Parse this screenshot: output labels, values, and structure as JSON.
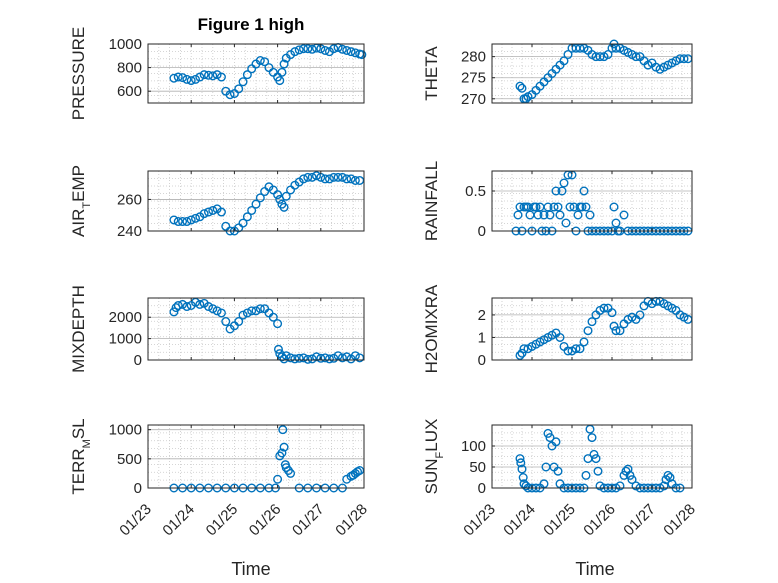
{
  "figure": {
    "title": "Figure 1 high",
    "xlabel": "Time"
  },
  "colors": {
    "marker": "#0072bd",
    "axis": "#262626",
    "grid": "#c8c8c8",
    "background": "#ffffff"
  },
  "chart_data": [
    {
      "id": "pressure",
      "type": "scatter",
      "ylabel": "PRESSURE",
      "title": "Figure 1 high",
      "ylim": [
        500,
        1000
      ],
      "yticks": [
        600,
        800,
        1000
      ],
      "xlim": [
        0,
        5
      ],
      "xticks": [
        "01/23",
        "01/24",
        "01/25",
        "01/26",
        "01/27",
        "01/28"
      ],
      "grid": true,
      "x": [
        0.6,
        0.7,
        0.8,
        0.9,
        1.0,
        1.1,
        1.2,
        1.3,
        1.4,
        1.5,
        1.6,
        1.7,
        1.8,
        1.9,
        2.0,
        2.1,
        2.2,
        2.3,
        2.4,
        2.5,
        2.6,
        2.7,
        2.8,
        2.9,
        3.0,
        3.05,
        3.1,
        3.15,
        3.2,
        3.3,
        3.4,
        3.5,
        3.6,
        3.7,
        3.8,
        3.9,
        4.0,
        4.1,
        4.2,
        4.3,
        4.4,
        4.5,
        4.6,
        4.7,
        4.8,
        4.9,
        4.95
      ],
      "y": [
        710,
        720,
        715,
        700,
        690,
        700,
        720,
        740,
        735,
        730,
        740,
        720,
        600,
        570,
        580,
        620,
        680,
        740,
        790,
        830,
        860,
        850,
        800,
        760,
        720,
        690,
        760,
        830,
        880,
        910,
        935,
        950,
        960,
        960,
        955,
        965,
        960,
        945,
        935,
        960,
        970,
        955,
        945,
        935,
        925,
        915,
        910
      ]
    },
    {
      "id": "theta",
      "type": "scatter",
      "ylabel": "THETA",
      "ylim": [
        269,
        283
      ],
      "yticks": [
        270,
        275,
        280
      ],
      "xlim": [
        0,
        5
      ],
      "xticks": [
        "01/23",
        "01/24",
        "01/25",
        "01/26",
        "01/27",
        "01/28"
      ],
      "grid": true,
      "x": [
        0.7,
        0.75,
        0.8,
        0.85,
        0.9,
        1.0,
        1.1,
        1.2,
        1.3,
        1.4,
        1.5,
        1.6,
        1.7,
        1.8,
        1.9,
        2.0,
        2.1,
        2.2,
        2.3,
        2.4,
        2.5,
        2.6,
        2.7,
        2.8,
        2.9,
        3.0,
        3.05,
        3.1,
        3.2,
        3.3,
        3.4,
        3.5,
        3.6,
        3.7,
        3.8,
        3.9,
        4.0,
        4.1,
        4.2,
        4.3,
        4.4,
        4.5,
        4.6,
        4.7,
        4.8,
        4.9
      ],
      "y": [
        273,
        272.5,
        270,
        270,
        270.5,
        271,
        272,
        273,
        274,
        275,
        276,
        277,
        278,
        279,
        280.5,
        282,
        282,
        282,
        282,
        281.5,
        280.5,
        280,
        280,
        280,
        280.5,
        282,
        283,
        282,
        282,
        281.5,
        281,
        280.5,
        280,
        280,
        279,
        278,
        278.5,
        277.5,
        277,
        277.5,
        278,
        278.5,
        279,
        279.5,
        279.5,
        279.5
      ]
    },
    {
      "id": "air_temp",
      "type": "scatter",
      "ylabel": "AIR",
      "ylabel_sub": "T",
      "ylabel_tail": "EMP",
      "ylim": [
        240,
        278
      ],
      "yticks": [
        240,
        260
      ],
      "xlim": [
        0,
        5
      ],
      "xticks": [
        "01/23",
        "01/24",
        "01/25",
        "01/26",
        "01/27",
        "01/28"
      ],
      "grid": true,
      "x": [
        0.6,
        0.7,
        0.8,
        0.9,
        1.0,
        1.1,
        1.2,
        1.3,
        1.4,
        1.5,
        1.6,
        1.7,
        1.8,
        1.9,
        2.0,
        2.1,
        2.2,
        2.3,
        2.4,
        2.5,
        2.6,
        2.7,
        2.8,
        2.9,
        3.0,
        3.05,
        3.1,
        3.15,
        3.2,
        3.3,
        3.4,
        3.5,
        3.6,
        3.7,
        3.8,
        3.9,
        4.0,
        4.1,
        4.2,
        4.3,
        4.4,
        4.5,
        4.6,
        4.7,
        4.8,
        4.9
      ],
      "y": [
        247,
        246,
        246,
        246,
        247,
        248,
        249,
        251,
        252,
        253,
        254,
        252,
        243,
        240,
        240,
        242,
        245,
        249,
        253,
        257,
        261,
        265,
        268,
        266,
        263,
        260,
        257,
        255,
        262,
        266,
        269,
        271,
        273,
        274,
        274,
        275,
        274,
        273,
        273,
        274,
        274,
        274,
        273,
        273,
        272,
        272
      ]
    },
    {
      "id": "rainfall",
      "type": "scatter",
      "ylabel": "RAINFALL",
      "ylim": [
        0,
        0.75
      ],
      "yticks": [
        0,
        0.5
      ],
      "xlim": [
        0,
        5
      ],
      "xticks": [
        "01/23",
        "01/24",
        "01/25",
        "01/26",
        "01/27",
        "01/28"
      ],
      "grid": true,
      "x": [
        0.6,
        0.65,
        0.7,
        0.75,
        0.8,
        0.85,
        0.9,
        0.95,
        1.0,
        1.05,
        1.1,
        1.15,
        1.2,
        1.25,
        1.3,
        1.35,
        1.4,
        1.45,
        1.5,
        1.55,
        1.6,
        1.65,
        1.7,
        1.75,
        1.8,
        1.85,
        1.9,
        1.95,
        2.0,
        2.05,
        2.1,
        2.15,
        2.2,
        2.25,
        2.3,
        2.35,
        2.4,
        2.45,
        2.5,
        2.6,
        2.7,
        2.8,
        2.9,
        3.0,
        3.05,
        3.1,
        3.15,
        3.2,
        3.3,
        3.4,
        3.5,
        3.6,
        3.7,
        3.8,
        3.9,
        4.0,
        4.1,
        4.2,
        4.3,
        4.4,
        4.5,
        4.6,
        4.7,
        4.8,
        4.9
      ],
      "y": [
        0,
        0.2,
        0.3,
        0,
        0.3,
        0.3,
        0.3,
        0.2,
        0,
        0.3,
        0.3,
        0.2,
        0.3,
        0,
        0.2,
        0,
        0.3,
        0.2,
        0,
        0.3,
        0.5,
        0.3,
        0.2,
        0.5,
        0.6,
        0.1,
        0.7,
        0.3,
        0.7,
        0.3,
        0,
        0.2,
        0.3,
        0.3,
        0.5,
        0.3,
        0,
        0.2,
        0,
        0,
        0,
        0,
        0,
        0,
        0.3,
        0.1,
        0,
        0,
        0.2,
        0,
        0,
        0,
        0,
        0,
        0,
        0,
        0,
        0,
        0,
        0,
        0,
        0,
        0,
        0,
        0
      ]
    },
    {
      "id": "mixdepth",
      "type": "scatter",
      "ylabel": "MIXDEPTH",
      "ylim": [
        0,
        2900
      ],
      "yticks": [
        0,
        1000,
        2000
      ],
      "xlim": [
        0,
        5
      ],
      "xticks": [
        "01/23",
        "01/24",
        "01/25",
        "01/26",
        "01/27",
        "01/28"
      ],
      "grid": true,
      "x": [
        0.6,
        0.65,
        0.7,
        0.8,
        0.9,
        1.0,
        1.1,
        1.2,
        1.3,
        1.4,
        1.5,
        1.6,
        1.7,
        1.8,
        1.9,
        2.0,
        2.1,
        2.2,
        2.3,
        2.4,
        2.5,
        2.6,
        2.7,
        2.8,
        2.9,
        3.0,
        3.02,
        3.05,
        3.1,
        3.15,
        3.2,
        3.3,
        3.4,
        3.5,
        3.6,
        3.7,
        3.8,
        3.9,
        4.0,
        4.1,
        4.2,
        4.3,
        4.4,
        4.5,
        4.6,
        4.7,
        4.8,
        4.9
      ],
      "y": [
        2250,
        2450,
        2550,
        2600,
        2500,
        2550,
        2700,
        2600,
        2650,
        2500,
        2400,
        2300,
        2200,
        1800,
        1450,
        1600,
        1800,
        2100,
        2200,
        2300,
        2300,
        2400,
        2400,
        2200,
        2000,
        1700,
        500,
        300,
        150,
        50,
        200,
        100,
        50,
        80,
        100,
        30,
        50,
        150,
        80,
        100,
        50,
        80,
        200,
        100,
        150,
        50,
        200,
        100
      ]
    },
    {
      "id": "h2omixra",
      "type": "scatter",
      "ylabel": "H2OMIXRA",
      "ylim": [
        0,
        2.75
      ],
      "yticks": [
        0,
        1,
        2
      ],
      "xlim": [
        0,
        5
      ],
      "xticks": [
        "01/23",
        "01/24",
        "01/25",
        "01/26",
        "01/27",
        "01/28"
      ],
      "grid": true,
      "x": [
        0.7,
        0.75,
        0.8,
        0.9,
        1.0,
        1.1,
        1.2,
        1.3,
        1.4,
        1.5,
        1.6,
        1.7,
        1.8,
        1.9,
        2.0,
        2.1,
        2.2,
        2.3,
        2.4,
        2.5,
        2.6,
        2.7,
        2.8,
        2.9,
        3.0,
        3.05,
        3.1,
        3.2,
        3.3,
        3.4,
        3.5,
        3.6,
        3.7,
        3.8,
        3.9,
        4.0,
        4.1,
        4.2,
        4.3,
        4.4,
        4.5,
        4.6,
        4.7,
        4.8,
        4.9
      ],
      "y": [
        0.2,
        0.3,
        0.5,
        0.5,
        0.6,
        0.7,
        0.8,
        0.9,
        1.0,
        1.1,
        1.2,
        1.0,
        0.6,
        0.4,
        0.4,
        0.5,
        0.5,
        0.8,
        1.3,
        1.7,
        2.0,
        2.2,
        2.3,
        2.3,
        2.1,
        1.5,
        1.3,
        1.3,
        1.6,
        1.8,
        1.9,
        1.8,
        2.0,
        2.4,
        2.6,
        2.5,
        2.6,
        2.6,
        2.5,
        2.4,
        2.3,
        2.2,
        2.0,
        1.9,
        1.8
      ]
    },
    {
      "id": "terr_msl",
      "type": "scatter",
      "ylabel": "TERR",
      "ylabel_sub": "M",
      "ylabel_tail": "SL",
      "ylim": [
        0,
        1080
      ],
      "yticks": [
        0,
        500,
        1000
      ],
      "xlim": [
        0,
        5
      ],
      "xticks": [
        "01/23",
        "01/24",
        "01/25",
        "01/26",
        "01/27",
        "01/28"
      ],
      "grid": true,
      "x": [
        0.6,
        0.8,
        1.0,
        1.2,
        1.4,
        1.6,
        1.8,
        2.0,
        2.2,
        2.4,
        2.6,
        2.8,
        2.95,
        3.0,
        3.05,
        3.1,
        3.12,
        3.15,
        3.18,
        3.2,
        3.25,
        3.3,
        3.5,
        3.7,
        3.9,
        4.1,
        4.3,
        4.5,
        4.6,
        4.7,
        4.75,
        4.8,
        4.85,
        4.9
      ],
      "y": [
        0,
        0,
        0,
        0,
        0,
        0,
        0,
        0,
        0,
        0,
        0,
        0,
        0,
        150,
        550,
        600,
        1000,
        700,
        400,
        350,
        300,
        250,
        0,
        0,
        0,
        0,
        0,
        0,
        150,
        200,
        220,
        250,
        280,
        300
      ]
    },
    {
      "id": "sun_flux",
      "type": "scatter",
      "ylabel": "SUN",
      "ylabel_sub": "F",
      "ylabel_tail": "LUX",
      "ylim": [
        0,
        150
      ],
      "yticks": [
        0,
        50,
        100
      ],
      "xlim": [
        0,
        5
      ],
      "xticks": [
        "01/23",
        "01/24",
        "01/25",
        "01/26",
        "01/27",
        "01/28"
      ],
      "grid": true,
      "x": [
        0.7,
        0.72,
        0.75,
        0.78,
        0.8,
        0.85,
        0.9,
        1.0,
        1.1,
        1.2,
        1.3,
        1.35,
        1.4,
        1.45,
        1.5,
        1.55,
        1.6,
        1.65,
        1.7,
        1.8,
        1.9,
        2.0,
        2.1,
        2.2,
        2.3,
        2.35,
        2.4,
        2.45,
        2.5,
        2.55,
        2.6,
        2.65,
        2.7,
        2.8,
        2.9,
        3.0,
        3.1,
        3.2,
        3.3,
        3.35,
        3.4,
        3.45,
        3.5,
        3.6,
        3.7,
        3.8,
        3.9,
        4.0,
        4.1,
        4.2,
        4.3,
        4.35,
        4.4,
        4.45,
        4.5,
        4.6,
        4.7
      ],
      "y": [
        70,
        60,
        45,
        25,
        10,
        5,
        0,
        0,
        0,
        0,
        10,
        50,
        130,
        120,
        100,
        50,
        110,
        40,
        10,
        0,
        0,
        0,
        0,
        0,
        0,
        30,
        70,
        140,
        120,
        80,
        70,
        40,
        5,
        0,
        0,
        0,
        0,
        5,
        30,
        40,
        45,
        30,
        20,
        5,
        0,
        0,
        0,
        0,
        0,
        0,
        5,
        20,
        30,
        25,
        10,
        0,
        0
      ]
    }
  ]
}
